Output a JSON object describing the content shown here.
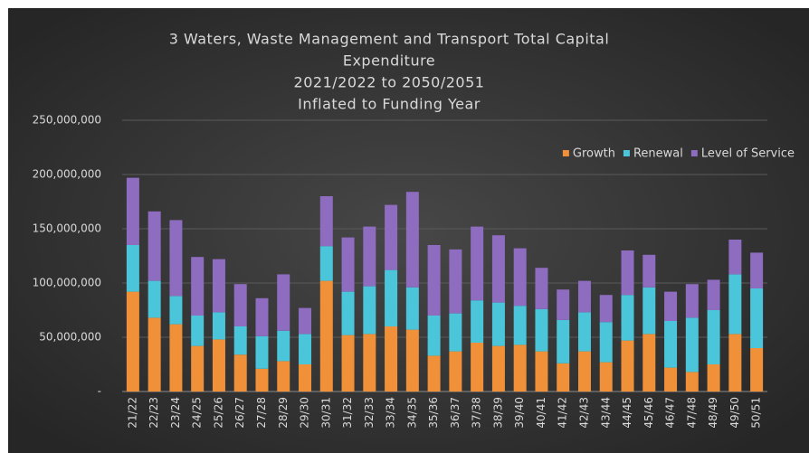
{
  "chart_data": {
    "type": "stacked_bar",
    "title": [
      "3 Waters, Waste Management and Transport Total Capital",
      "Expenditure",
      "2021/2022  to 2050/2051",
      "Inflated to Funding Year"
    ],
    "categories": [
      "21/22",
      "22/23",
      "23/24",
      "24/25",
      "25/26",
      "26/27",
      "27/28",
      "28/29",
      "29/30",
      "30/31",
      "31/32",
      "32/33",
      "33/34",
      "34/35",
      "35/36",
      "36/37",
      "37/38",
      "38/39",
      "39/40",
      "40/41",
      "41/42",
      "42/43",
      "43/44",
      "44/45",
      "45/46",
      "46/47",
      "47/48",
      "48/49",
      "49/50",
      "50/51"
    ],
    "series": [
      {
        "name": "Growth",
        "color": "#f0913a",
        "values": [
          92000000,
          68000000,
          62000000,
          42000000,
          48000000,
          34000000,
          21000000,
          28000000,
          25000000,
          102000000,
          52000000,
          53000000,
          60000000,
          57000000,
          33000000,
          37000000,
          45000000,
          42000000,
          43000000,
          37000000,
          26000000,
          37000000,
          27000000,
          47000000,
          53000000,
          22000000,
          18000000,
          25000000,
          53000000,
          40000000
        ]
      },
      {
        "name": "Renewal",
        "color": "#4bc5d9",
        "values": [
          43000000,
          34000000,
          26000000,
          28000000,
          25000000,
          26000000,
          30000000,
          28000000,
          28000000,
          32000000,
          40000000,
          44000000,
          52000000,
          39000000,
          37000000,
          35000000,
          39000000,
          40000000,
          36000000,
          39000000,
          40000000,
          36000000,
          37000000,
          42000000,
          43000000,
          43000000,
          50000000,
          50000000,
          55000000,
          55000000
        ]
      },
      {
        "name": "Level of Service",
        "color": "#8e6cbf",
        "values": [
          62000000,
          64000000,
          70000000,
          54000000,
          49000000,
          39000000,
          35000000,
          52000000,
          24000000,
          46000000,
          50000000,
          55000000,
          60000000,
          88000000,
          65000000,
          59000000,
          68000000,
          62000000,
          53000000,
          38000000,
          28000000,
          29000000,
          25000000,
          41000000,
          30000000,
          27000000,
          31000000,
          28000000,
          32000000,
          33000000
        ]
      }
    ],
    "ylim": [
      0,
      250000000
    ],
    "yticks": [
      {
        "value": 0,
        "label": "-"
      },
      {
        "value": 50000000,
        "label": "50,000,000"
      },
      {
        "value": 100000000,
        "label": "100,000,000"
      },
      {
        "value": 150000000,
        "label": "150,000,000"
      },
      {
        "value": 200000000,
        "label": "200,000,000"
      },
      {
        "value": 250000000,
        "label": "250,000,000"
      }
    ],
    "grid": true,
    "legend": "top-right"
  }
}
